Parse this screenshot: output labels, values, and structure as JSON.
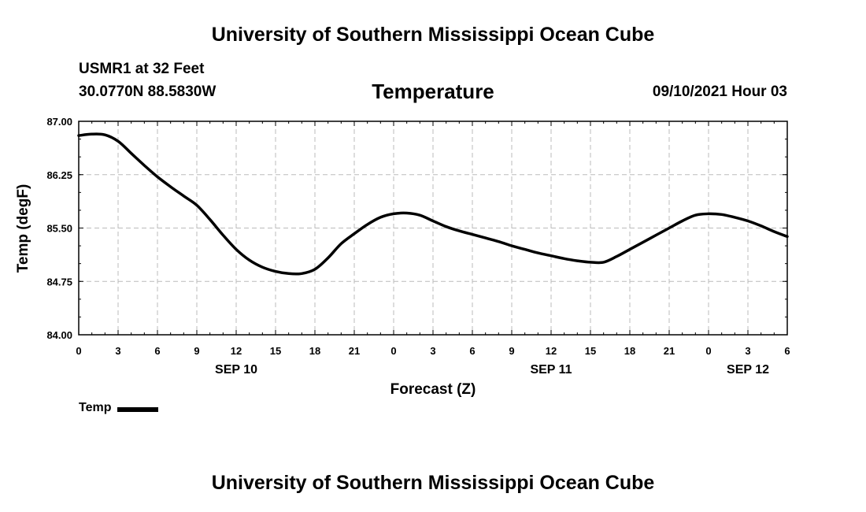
{
  "header": {
    "title": "University of Southern Mississippi Ocean Cube",
    "station": "USMR1 at 32 Feet",
    "coords": "30.0770N  88.5830W",
    "variable": "Temperature",
    "timestamp": "09/10/2021 Hour 03"
  },
  "footer": {
    "title": "University of Southern Mississippi Ocean Cube"
  },
  "legend": {
    "label": "Temp",
    "color": "#000000"
  },
  "chart_data": {
    "type": "line",
    "xlabel": "Forecast (Z)",
    "ylabel": "Temp (degF)",
    "ylim": [
      84.0,
      87.0
    ],
    "y_ticks": [
      "84.00",
      "84.75",
      "85.50",
      "86.25",
      "87.00"
    ],
    "x_tick_labels": [
      "0",
      "3",
      "6",
      "9",
      "12",
      "15",
      "18",
      "21",
      "0",
      "3",
      "6",
      "9",
      "12",
      "15",
      "18",
      "21",
      "0",
      "3",
      "6"
    ],
    "day_labels": [
      {
        "label": "SEP 10",
        "hour": 12
      },
      {
        "label": "SEP 11",
        "hour": 36
      },
      {
        "label": "SEP 12",
        "hour": 51
      }
    ],
    "grid": true,
    "x_unit": "forecast hour",
    "xlim": [
      0,
      54
    ],
    "series": [
      {
        "name": "Temp",
        "color": "#000000",
        "x": [
          0,
          1,
          2,
          3,
          4,
          5,
          6,
          7,
          8,
          9,
          10,
          11,
          12,
          13,
          14,
          15,
          16,
          17,
          18,
          19,
          20,
          21,
          22,
          23,
          24,
          25,
          26,
          27,
          28,
          29,
          30,
          31,
          32,
          33,
          34,
          35,
          36,
          37,
          38,
          39,
          40,
          41,
          42,
          43,
          44,
          45,
          46,
          47,
          48,
          49,
          50,
          51,
          52,
          53,
          54
        ],
        "values": [
          86.8,
          86.82,
          86.81,
          86.72,
          86.55,
          86.38,
          86.22,
          86.08,
          85.95,
          85.82,
          85.62,
          85.4,
          85.2,
          85.05,
          84.95,
          84.89,
          84.86,
          84.86,
          84.92,
          85.08,
          85.28,
          85.42,
          85.55,
          85.65,
          85.7,
          85.71,
          85.68,
          85.6,
          85.52,
          85.46,
          85.41,
          85.36,
          85.31,
          85.25,
          85.2,
          85.15,
          85.11,
          85.07,
          85.04,
          85.02,
          85.02,
          85.1,
          85.2,
          85.3,
          85.4,
          85.5,
          85.6,
          85.68,
          85.7,
          85.69,
          85.65,
          85.6,
          85.53,
          85.45,
          85.38
        ]
      }
    ]
  }
}
